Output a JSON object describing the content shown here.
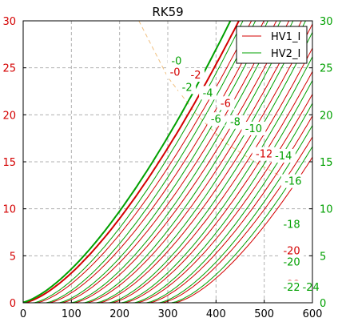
{
  "chart_data": {
    "type": "line",
    "title": "RK59",
    "xlabel": "",
    "ylabel": "",
    "xlim": [
      0,
      600
    ],
    "ylim": [
      0,
      30
    ],
    "x_ticks": [
      0,
      100,
      200,
      300,
      400,
      500,
      600
    ],
    "y_ticks": [
      0,
      5,
      10,
      15,
      20,
      25,
      30
    ],
    "grid": true,
    "legend_position": "top-right",
    "legend": [
      {
        "name": "HV1_I",
        "color": "#d40000"
      },
      {
        "name": "HV2_I",
        "color": "#00a000"
      }
    ],
    "right_axis_color": "#00a000",
    "power_limit_curve": {
      "color": "#f0c080",
      "style": "dashed",
      "x": [
        240,
        300,
        360,
        420,
        480,
        540
      ],
      "y": [
        30,
        24,
        20,
        17,
        15,
        13.3
      ]
    },
    "series": [
      {
        "grid_v": 0,
        "hv1_label": "-0",
        "hv2_label": "-0",
        "hv1_label_pos": [
          315,
          24.5
        ],
        "hv2_label_pos": [
          318,
          25.7
        ]
      },
      {
        "grid_v": -2,
        "hv1_label": "-2",
        "hv2_label": "-2",
        "hv1_label_pos": [
          358,
          24.2
        ],
        "hv2_label_pos": [
          340,
          22.9
        ]
      },
      {
        "grid_v": -4,
        "hv1_label": "",
        "hv2_label": "-4",
        "hv2_label_pos": [
          383,
          22.3
        ]
      },
      {
        "grid_v": -6,
        "hv1_label": "-6",
        "hv2_label": "-6",
        "hv1_label_pos": [
          420,
          21.2
        ],
        "hv2_label_pos": [
          400,
          19.5
        ]
      },
      {
        "grid_v": -8,
        "hv1_label": "",
        "hv2_label": "-8",
        "hv2_label_pos": [
          440,
          19.2
        ]
      },
      {
        "grid_v": -10,
        "hv1_label": "",
        "hv2_label": "-10",
        "hv2_label_pos": [
          478,
          18.5
        ]
      },
      {
        "grid_v": -12,
        "hv1_label": "-12",
        "hv2_label": "",
        "hv1_label_pos": [
          500,
          15.8
        ]
      },
      {
        "grid_v": -14,
        "hv1_label": "",
        "hv2_label": "-14",
        "hv2_label_pos": [
          540,
          15.6
        ]
      },
      {
        "grid_v": -16,
        "hv1_label": "",
        "hv2_label": "-16",
        "hv2_label_pos": [
          560,
          12.9
        ]
      },
      {
        "grid_v": -18,
        "hv1_label": "-18",
        "hv2_label": "-18",
        "hv1_label_pos": [
          557,
          8.3
        ],
        "hv2_label_pos": [
          557,
          8.3
        ]
      },
      {
        "grid_v": -20,
        "hv1_label": "-20",
        "hv2_label": "-20",
        "hv1_label_pos": [
          557,
          5.5
        ],
        "hv2_label_pos": [
          557,
          4.3
        ]
      },
      {
        "grid_v": -22,
        "hv1_label": "-22",
        "hv2_label": "-22",
        "hv1_label_pos": [
          557,
          1.9
        ],
        "hv2_label_pos": [
          557,
          1.6
        ]
      },
      {
        "grid_v": -24,
        "hv1_label": "",
        "hv2_label": "-24",
        "hv2_label_pos": [
          597,
          1.6
        ]
      }
    ]
  }
}
